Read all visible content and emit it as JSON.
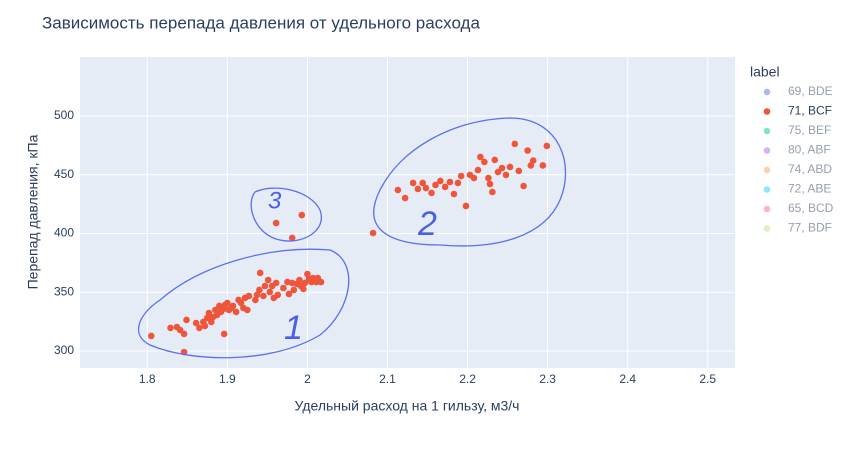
{
  "chart_data": {
    "type": "scatter",
    "title": "Зависимость перепада давления от удельного расхода",
    "xlabel": "Удельный  расход на 1 гильзу, м3/ч",
    "ylabel": "Перепад давления, кПа",
    "legend_title": "label",
    "xlim": [
      1.716,
      2.534
    ],
    "ylim": [
      285.5,
      550.2
    ],
    "xticks": [
      1.8,
      1.9,
      2,
      2.1,
      2.2,
      2.3,
      2.4,
      2.5
    ],
    "yticks": [
      300,
      350,
      400,
      450,
      500
    ],
    "grid": true,
    "annotations": [
      "1",
      "2",
      "3"
    ],
    "series": [
      {
        "name": "69, BDE",
        "color": "#636efa",
        "visible": "legendonly",
        "x": [],
        "y": []
      },
      {
        "name": "71, BCF",
        "color": "#EF553B",
        "visible": true,
        "x": [
          1.805,
          1.829,
          1.837,
          1.841,
          1.846,
          1.849,
          1.846,
          1.861,
          1.865,
          1.87,
          1.872,
          1.875,
          1.877,
          1.88,
          1.882,
          1.885,
          1.887,
          1.89,
          1.892,
          1.895,
          1.897,
          1.9,
          1.902,
          1.905,
          1.907,
          1.896,
          1.911,
          1.914,
          1.917,
          1.92,
          1.922,
          1.925,
          1.927,
          1.935,
          1.937,
          1.94,
          1.941,
          1.945,
          1.947,
          1.951,
          1.953,
          1.956,
          1.958,
          1.961,
          1.963,
          1.97,
          1.975,
          1.977,
          1.981,
          1.983,
          1.987,
          1.99,
          1.992,
          1.995,
          1.997,
          2.0,
          2.002,
          2.005,
          2.007,
          2.011,
          2.013,
          2.017,
          2.082,
          2.113,
          2.122,
          2.132,
          2.138,
          2.144,
          2.148,
          2.155,
          2.16,
          2.166,
          2.172,
          2.178,
          2.183,
          2.188,
          2.192,
          2.198,
          2.203,
          2.208,
          2.213,
          2.216,
          2.221,
          2.226,
          2.228,
          2.231,
          2.234,
          2.238,
          2.243,
          2.248,
          2.253,
          2.259,
          2.264,
          2.27,
          2.275,
          2.279,
          2.282,
          2.294,
          2.299,
          1.961,
          1.981,
          1.993
        ],
        "y": [
          312.8,
          319.6,
          320.4,
          317.9,
          299.1,
          326.4,
          314.5,
          323.8,
          319.6,
          324.7,
          321.3,
          328.1,
          332.3,
          324.7,
          328.9,
          334.9,
          330.6,
          338.3,
          333.2,
          335.7,
          339.1,
          340.9,
          334.9,
          336.6,
          338.3,
          314.5,
          333.2,
          343.4,
          340.9,
          336.6,
          345.1,
          334.9,
          346.8,
          343.4,
          347.7,
          351.9,
          366.4,
          346.8,
          355.3,
          360.4,
          350.2,
          355.3,
          345.1,
          357.9,
          347.7,
          353.6,
          358.7,
          348.5,
          357.9,
          351.9,
          357.0,
          360.4,
          355.3,
          352.8,
          357.9,
          365.5,
          361.3,
          358.7,
          362.1,
          358.7,
          362.1,
          358.7,
          400.4,
          437.0,
          430.2,
          443.0,
          437.9,
          443.0,
          438.7,
          434.5,
          441.3,
          444.7,
          439.6,
          443.8,
          433.6,
          443.0,
          448.9,
          423.4,
          449.8,
          447.2,
          454.0,
          465.1,
          460.9,
          447.2,
          442.1,
          435.3,
          462.6,
          452.3,
          455.7,
          449.8,
          456.6,
          476.2,
          453.2,
          440.4,
          470.6,
          457.9,
          462.1,
          457.9,
          474.5,
          408.9,
          396.2,
          415.7
        ]
      },
      {
        "name": "75, BEF",
        "color": "#00cc96",
        "visible": "legendonly",
        "x": [],
        "y": []
      },
      {
        "name": "80, ABF",
        "color": "#ab63fa",
        "visible": "legendonly",
        "x": [],
        "y": []
      },
      {
        "name": "74, ABD",
        "color": "#FFA15A",
        "visible": "legendonly",
        "x": [],
        "y": []
      },
      {
        "name": "72, ABE",
        "color": "#19d3f3",
        "visible": "legendonly",
        "x": [],
        "y": []
      },
      {
        "name": "65, BCD",
        "color": "#FF6692",
        "visible": "legendonly",
        "x": [],
        "y": []
      },
      {
        "name": "77, BDF",
        "color": "#B6E880",
        "visible": "legendonly",
        "x": [],
        "y": []
      }
    ]
  }
}
